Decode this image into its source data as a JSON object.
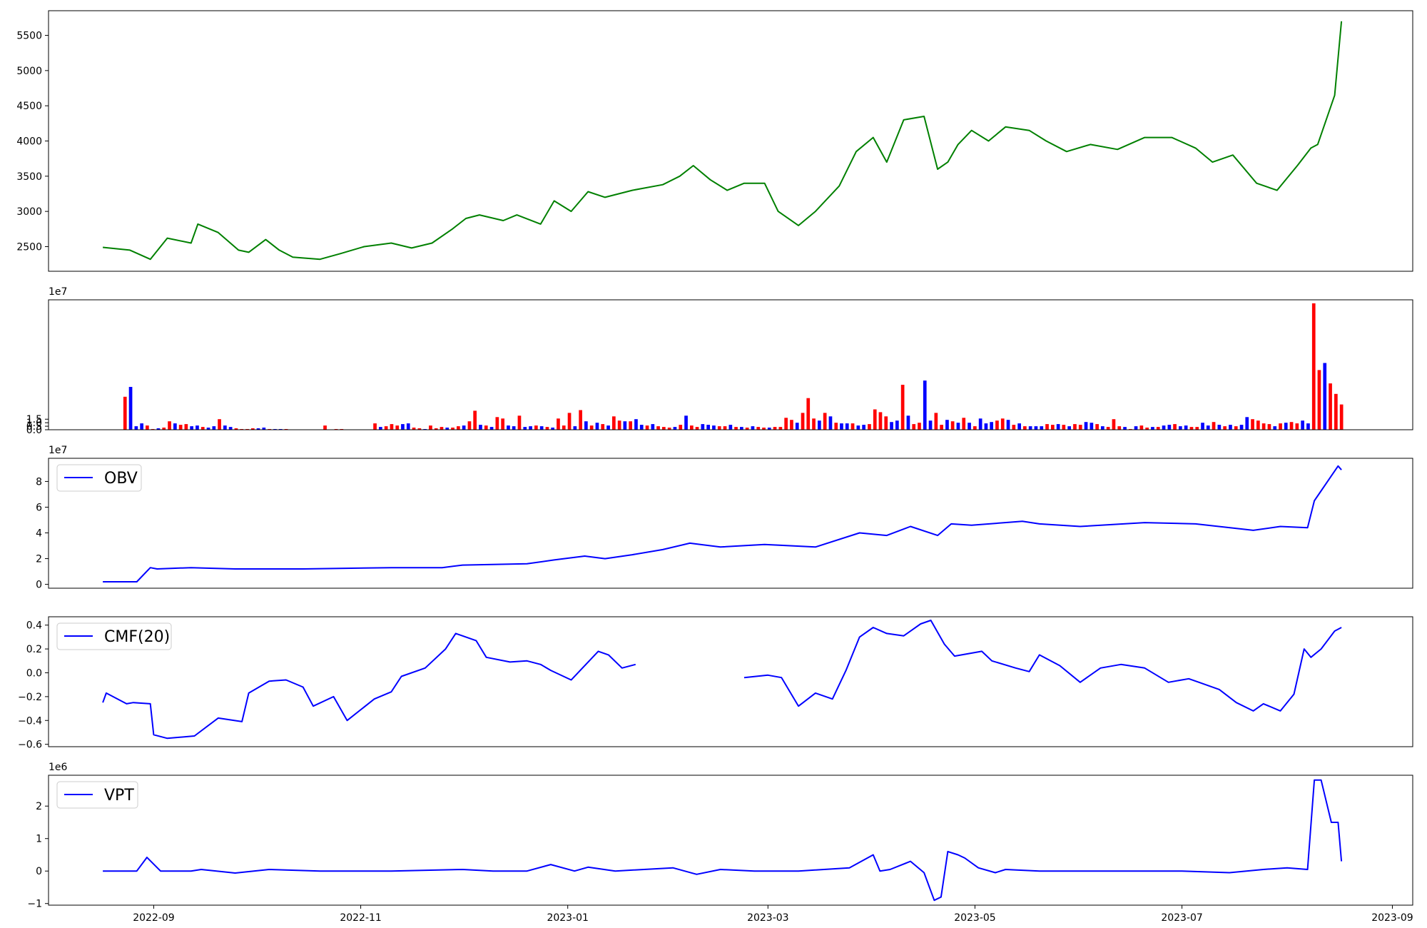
{
  "chart_data": [
    {
      "type": "line",
      "title": "",
      "ylim": [
        2150,
        5850
      ],
      "yticks": [
        "2500",
        "3000",
        "3500",
        "4000",
        "4500",
        "5000",
        "5500"
      ],
      "grid": false,
      "color": "#008000",
      "x": [
        "2022-08-17",
        "2022-08-25",
        "2022-08-31",
        "2022-09-05",
        "2022-09-12",
        "2022-09-14",
        "2022-09-20",
        "2022-09-26",
        "2022-09-29",
        "2022-10-04",
        "2022-10-08",
        "2022-10-12",
        "2022-10-20",
        "2022-10-26",
        "2022-11-02",
        "2022-11-10",
        "2022-11-16",
        "2022-11-22",
        "2022-11-28",
        "2022-12-02",
        "2022-12-06",
        "2022-12-13",
        "2022-12-17",
        "2022-12-24",
        "2022-12-28",
        "2023-01-02",
        "2023-01-07",
        "2023-01-12",
        "2023-01-20",
        "2023-01-29",
        "2023-02-03",
        "2023-02-07",
        "2023-02-12",
        "2023-02-17",
        "2023-02-22",
        "2023-02-28",
        "2023-03-04",
        "2023-03-10",
        "2023-03-15",
        "2023-03-22",
        "2023-03-27",
        "2023-04-01",
        "2023-04-05",
        "2023-04-10",
        "2023-04-16",
        "2023-04-20",
        "2023-04-23",
        "2023-04-26",
        "2023-04-30",
        "2023-05-05",
        "2023-05-10",
        "2023-05-17",
        "2023-05-22",
        "2023-05-28",
        "2023-06-04",
        "2023-06-12",
        "2023-06-20",
        "2023-06-28",
        "2023-07-05",
        "2023-07-10",
        "2023-07-16",
        "2023-07-23",
        "2023-07-29",
        "2023-08-04",
        "2023-08-08",
        "2023-08-10",
        "2023-08-15",
        "2023-08-17"
      ],
      "values": [
        2490,
        2450,
        2320,
        2620,
        2550,
        2820,
        2700,
        2450,
        2420,
        2600,
        2450,
        2350,
        2320,
        2400,
        2500,
        2550,
        2480,
        2550,
        2750,
        2900,
        2950,
        2870,
        2950,
        2820,
        3150,
        3000,
        3280,
        3200,
        3300,
        3380,
        3500,
        3650,
        3450,
        3300,
        3400,
        3400,
        3000,
        2800,
        3000,
        3360,
        3850,
        4050,
        3700,
        4300,
        4350,
        3600,
        3700,
        3950,
        4150,
        4000,
        4200,
        4150,
        4000,
        3850,
        3950,
        3880,
        4050,
        4050,
        3900,
        3700,
        3800,
        3400,
        3300,
        3650,
        3900,
        3950,
        4650,
        5700
      ]
    },
    {
      "type": "bar",
      "title": "",
      "ylim": [
        0,
        18.5
      ],
      "yticks": [
        "0.0",
        "0.5",
        "1.0",
        "1.5"
      ],
      "scale_label": "1e7",
      "up_color": "#0000ff",
      "down_color": "#ff0000",
      "x_range": [
        "2022-08-17",
        "2023-08-17"
      ],
      "values": [
        0.02,
        0.02,
        0.01,
        0.01,
        4.7,
        6.1,
        0.5,
        0.9,
        0.6,
        0.1,
        0.2,
        0.3,
        1.2,
        0.9,
        0.7,
        0.8,
        0.5,
        0.6,
        0.4,
        0.3,
        0.5,
        1.5,
        0.6,
        0.4,
        0.2,
        0.1,
        0.1,
        0.2,
        0.2,
        0.3,
        0.1,
        0.1,
        0.1,
        0.1,
        0.05,
        0.05,
        0.05,
        0.05,
        0.05,
        0.05,
        0.6,
        0.05,
        0.1,
        0.1,
        0.05,
        0.05,
        0.05,
        0.05,
        0.05,
        0.9,
        0.4,
        0.5,
        0.8,
        0.6,
        0.8,
        0.9,
        0.3,
        0.2,
        0.1,
        0.6,
        0.2,
        0.4,
        0.3,
        0.3,
        0.5,
        0.6,
        1.2,
        2.7,
        0.7,
        0.6,
        0.4,
        1.8,
        1.6,
        0.6,
        0.5,
        2.0,
        0.4,
        0.5,
        0.6,
        0.5,
        0.4,
        0.3,
        1.6,
        0.6,
        2.4,
        0.5,
        2.8,
        1.2,
        0.6,
        1.0,
        0.8,
        0.6,
        1.9,
        1.3,
        1.2,
        1.2,
        1.5,
        0.7,
        0.6,
        0.8,
        0.5,
        0.4,
        0.3,
        0.4,
        0.7,
        2.0,
        0.6,
        0.4,
        0.8,
        0.7,
        0.6,
        0.5,
        0.5,
        0.7,
        0.4,
        0.4,
        0.3,
        0.5,
        0.4,
        0.3,
        0.3,
        0.4,
        0.4,
        1.7,
        1.4,
        1.0,
        2.4,
        4.5,
        1.6,
        1.3,
        2.4,
        1.9,
        1.0,
        0.9,
        0.9,
        0.9,
        0.6,
        0.7,
        0.8,
        2.9,
        2.5,
        1.9,
        1.1,
        1.3,
        6.4,
        2.0,
        0.8,
        1.0,
        7.0,
        1.3,
        2.4,
        0.7,
        1.4,
        1.2,
        1.0,
        1.7,
        1.0,
        0.5,
        1.6,
        0.9,
        1.1,
        1.3,
        1.6,
        1.4,
        0.7,
        0.9,
        0.5,
        0.5,
        0.5,
        0.5,
        0.8,
        0.7,
        0.8,
        0.7,
        0.5,
        0.8,
        0.7,
        1.1,
        1.0,
        0.8,
        0.5,
        0.4,
        1.5,
        0.5,
        0.4,
        0.1,
        0.5,
        0.6,
        0.3,
        0.4,
        0.4,
        0.6,
        0.7,
        0.8,
        0.5,
        0.6,
        0.4,
        0.4,
        1.0,
        0.6,
        1.1,
        0.7,
        0.5,
        0.7,
        0.5,
        0.7,
        1.8,
        1.5,
        1.3,
        0.9,
        0.8,
        0.5,
        0.9,
        1.0,
        1.1,
        0.9,
        1.3,
        0.9,
        18.0,
        8.5,
        9.5,
        6.6,
        5.1,
        3.6
      ],
      "up": [
        0,
        0,
        0,
        0,
        0,
        1,
        1,
        1,
        0,
        0,
        1,
        0,
        0,
        1,
        0,
        0,
        1,
        1,
        0,
        1,
        1,
        0,
        1,
        1,
        0,
        0,
        0,
        0,
        1,
        1,
        0,
        1,
        1,
        0,
        0,
        1,
        0,
        0,
        1,
        0,
        0,
        1,
        0,
        0,
        1,
        0,
        1,
        1,
        0,
        0,
        1,
        0,
        0,
        0,
        1,
        1,
        0,
        0,
        1,
        0,
        0,
        0,
        1,
        0,
        0,
        1,
        0,
        0,
        1,
        0,
        1,
        0,
        0,
        1,
        1,
        0,
        1,
        1,
        0,
        1,
        0,
        1,
        0,
        0,
        0,
        1,
        0,
        1,
        0,
        1,
        0,
        1,
        0,
        0,
        1,
        0,
        1,
        1,
        0,
        1,
        0,
        0,
        0,
        1,
        0,
        1,
        0,
        0,
        1,
        1,
        1,
        0,
        0,
        1,
        0,
        1,
        0,
        1,
        0,
        0,
        1,
        0,
        0,
        0,
        0,
        1,
        0,
        0,
        0,
        1,
        0,
        1,
        0,
        1,
        1,
        0,
        1,
        1,
        0,
        0,
        0,
        0,
        1,
        1,
        0,
        1,
        0,
        0,
        1,
        1,
        0,
        0,
        1,
        0,
        1,
        0,
        1,
        0,
        1,
        1,
        1,
        0,
        0,
        1,
        0,
        1,
        0,
        1,
        1,
        1,
        0,
        0,
        1,
        0,
        1,
        0,
        0,
        1,
        1,
        0,
        1,
        0,
        0,
        0,
        1,
        0,
        1,
        0,
        0,
        1,
        0,
        1,
        1,
        0,
        1,
        1,
        0,
        0,
        1,
        1,
        0,
        1,
        0,
        1,
        0,
        1,
        1,
        0,
        0,
        0,
        0,
        1,
        0,
        1,
        0,
        0,
        1,
        1,
        0,
        0,
        1,
        0,
        0
      ]
    },
    {
      "type": "line",
      "title": "",
      "ylim": [
        -0.3,
        9.8
      ],
      "yticks": [
        "0",
        "2",
        "4",
        "6",
        "8"
      ],
      "scale_label": "1e7",
      "legend": "OBV",
      "legend_position": "upper-left",
      "color": "#0000ff",
      "x": [
        "2022-08-17",
        "2022-08-27",
        "2022-08-31",
        "2022-09-02",
        "2022-09-12",
        "2022-09-25",
        "2022-10-15",
        "2022-11-10",
        "2022-11-25",
        "2022-12-01",
        "2022-12-20",
        "2022-12-28",
        "2023-01-06",
        "2023-01-12",
        "2023-01-20",
        "2023-01-29",
        "2023-02-06",
        "2023-02-15",
        "2023-02-28",
        "2023-03-15",
        "2023-03-28",
        "2023-04-05",
        "2023-04-12",
        "2023-04-20",
        "2023-04-24",
        "2023-04-30",
        "2023-05-15",
        "2023-05-20",
        "2023-06-01",
        "2023-06-20",
        "2023-07-05",
        "2023-07-22",
        "2023-07-30",
        "2023-08-07",
        "2023-08-09",
        "2023-08-16",
        "2023-08-17"
      ],
      "values": [
        0.2,
        0.2,
        1.3,
        1.2,
        1.3,
        1.2,
        1.2,
        1.3,
        1.3,
        1.5,
        1.6,
        1.9,
        2.2,
        2.0,
        2.3,
        2.7,
        3.2,
        2.9,
        3.1,
        2.9,
        4.0,
        3.8,
        4.5,
        3.8,
        4.7,
        4.6,
        4.9,
        4.7,
        4.5,
        4.8,
        4.7,
        4.2,
        4.5,
        4.4,
        6.5,
        9.2,
        8.9
      ]
    },
    {
      "type": "line",
      "title": "",
      "ylim": [
        -0.62,
        0.47
      ],
      "yticks": [
        "0.4",
        "0.2",
        "0.0",
        "−0.2",
        "−0.4",
        "−0.6"
      ],
      "legend": "CMF(20)",
      "legend_position": "upper-left",
      "color": "#0000ff",
      "gap": [
        "2023-01-22",
        "2023-02-22"
      ],
      "segments": [
        {
          "x": [
            "2022-08-17",
            "2022-08-18",
            "2022-08-24",
            "2022-08-26",
            "2022-08-31",
            "2022-09-01",
            "2022-09-05",
            "2022-09-13",
            "2022-09-20",
            "2022-09-27",
            "2022-09-29",
            "2022-10-05",
            "2022-10-10",
            "2022-10-15",
            "2022-10-18",
            "2022-10-24",
            "2022-10-28",
            "2022-11-05",
            "2022-11-10",
            "2022-11-13",
            "2022-11-20",
            "2022-11-26",
            "2022-11-29",
            "2022-12-05",
            "2022-12-08",
            "2022-12-15",
            "2022-12-20",
            "2022-12-24",
            "2022-12-27",
            "2023-01-02",
            "2023-01-05",
            "2023-01-10",
            "2023-01-13",
            "2023-01-17",
            "2023-01-21"
          ],
          "values": [
            -0.25,
            -0.17,
            -0.26,
            -0.25,
            -0.26,
            -0.52,
            -0.55,
            -0.53,
            -0.38,
            -0.41,
            -0.17,
            -0.07,
            -0.06,
            -0.12,
            -0.28,
            -0.2,
            -0.4,
            -0.22,
            -0.16,
            -0.03,
            0.04,
            0.2,
            0.33,
            0.27,
            0.13,
            0.09,
            0.1,
            0.07,
            0.02,
            -0.06,
            0.03,
            0.18,
            0.15,
            0.04,
            0.07
          ]
        },
        {
          "x": [
            "2023-02-22",
            "2023-03-01",
            "2023-03-05",
            "2023-03-10",
            "2023-03-15",
            "2023-03-20",
            "2023-03-24",
            "2023-03-28",
            "2023-04-01",
            "2023-04-05",
            "2023-04-10",
            "2023-04-15",
            "2023-04-18",
            "2023-04-22",
            "2023-04-25",
            "2023-05-03",
            "2023-05-06",
            "2023-05-13",
            "2023-05-17",
            "2023-05-20",
            "2023-05-26",
            "2023-06-01",
            "2023-06-07",
            "2023-06-13",
            "2023-06-20",
            "2023-06-27",
            "2023-07-03",
            "2023-07-06",
            "2023-07-12",
            "2023-07-17",
            "2023-07-22",
            "2023-07-25",
            "2023-07-30",
            "2023-08-03",
            "2023-08-06",
            "2023-08-08",
            "2023-08-11",
            "2023-08-15",
            "2023-08-17"
          ],
          "values": [
            -0.04,
            -0.02,
            -0.04,
            -0.28,
            -0.17,
            -0.22,
            0.02,
            0.3,
            0.38,
            0.33,
            0.31,
            0.41,
            0.44,
            0.24,
            0.14,
            0.18,
            0.1,
            0.04,
            0.01,
            0.15,
            0.06,
            -0.08,
            0.04,
            0.07,
            0.04,
            -0.08,
            -0.05,
            -0.08,
            -0.14,
            -0.25,
            -0.32,
            -0.26,
            -0.32,
            -0.18,
            0.2,
            0.13,
            0.2,
            0.35,
            0.38
          ]
        }
      ]
    },
    {
      "type": "line",
      "title": "",
      "ylim": [
        -1.05,
        2.95
      ],
      "yticks": [
        "2",
        "1",
        "0",
        "−1"
      ],
      "scale_label": "1e6",
      "legend": "VPT",
      "legend_position": "upper-left",
      "color": "#0000ff",
      "x": [
        "2022-08-17",
        "2022-08-27",
        "2022-08-30",
        "2022-09-03",
        "2022-09-12",
        "2022-09-15",
        "2022-09-25",
        "2022-10-05",
        "2022-10-20",
        "2022-11-10",
        "2022-12-01",
        "2022-12-10",
        "2022-12-20",
        "2022-12-27",
        "2023-01-03",
        "2023-01-07",
        "2023-01-15",
        "2023-02-01",
        "2023-02-08",
        "2023-02-15",
        "2023-02-25",
        "2023-03-10",
        "2023-03-25",
        "2023-04-01",
        "2023-04-03",
        "2023-04-06",
        "2023-04-12",
        "2023-04-16",
        "2023-04-19",
        "2023-04-21",
        "2023-04-23",
        "2023-04-26",
        "2023-04-28",
        "2023-05-02",
        "2023-05-07",
        "2023-05-10",
        "2023-05-20",
        "2023-06-10",
        "2023-07-01",
        "2023-07-15",
        "2023-07-25",
        "2023-08-01",
        "2023-08-07",
        "2023-08-09",
        "2023-08-11",
        "2023-08-14",
        "2023-08-16",
        "2023-08-17"
      ],
      "values": [
        0,
        0,
        0.42,
        0,
        0,
        0.05,
        -0.06,
        0.05,
        0,
        0,
        0.05,
        0,
        0,
        0.2,
        0,
        0.12,
        0,
        0.1,
        -0.1,
        0.05,
        0,
        0,
        0.1,
        0.5,
        0,
        0.05,
        0.3,
        -0.05,
        -0.9,
        -0.8,
        0.6,
        0.5,
        0.4,
        0.1,
        -0.05,
        0.05,
        0,
        0,
        0,
        -0.05,
        0.05,
        0.1,
        0.05,
        2.8,
        2.8,
        1.5,
        1.5,
        0.3
      ]
    }
  ],
  "x_axis": {
    "range": [
      "2022-08-01",
      "2023-09-07"
    ],
    "ticks": [
      "2022-09",
      "2022-11",
      "2023-01",
      "2023-03",
      "2023-05",
      "2023-07",
      "2023-09"
    ],
    "tick_labels": [
      "2022-09",
      "2022-11",
      "2023-01",
      "2023-03",
      "2023-05",
      "2023-07",
      "2023-09"
    ]
  }
}
